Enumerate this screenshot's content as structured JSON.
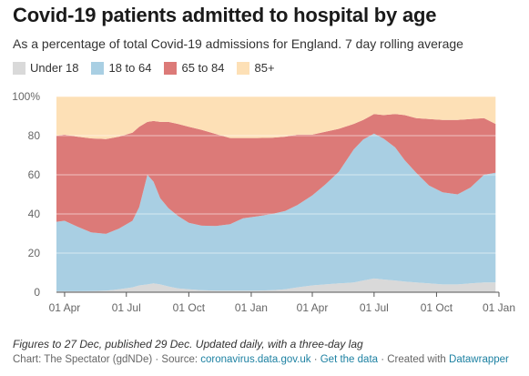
{
  "header": {
    "title": "Covid-19 patients admitted to hospital by age",
    "subtitle": "As a percentage of total Covid-19 admissions for England. 7 day rolling average"
  },
  "footer": {
    "notes": "Figures to 27 Dec, published 29 Dec. Updated daily, with a three-day lag",
    "source_prefix": "Chart: The Spectator (gdNDe) · Source: ",
    "source_link": "coronavirus.data.gov.uk",
    "separator_1": " · ",
    "get_data_link": "Get the data",
    "separator_2": " · Created with ",
    "datawrapper_link": "Datawrapper"
  },
  "colors": {
    "under_18": "#d9d9d9",
    "age_18_to_64": "#a9cfe3",
    "age_65_to_84": "#dc7a78",
    "age_85_plus": "#fde0b6",
    "link": "#1d81a2"
  },
  "chart_data": {
    "type": "area",
    "stacked": true,
    "ylim": [
      0,
      100
    ],
    "y_ticks": [
      0,
      20,
      40,
      60,
      80,
      100
    ],
    "y_tick_labels": [
      "0",
      "20",
      "40",
      "60",
      "80",
      "100%"
    ],
    "x_tick_labels": [
      "01 Apr",
      "01 Jul",
      "01 Oct",
      "01 Jan",
      "01 Apr",
      "01 Jul",
      "01 Oct",
      "01 Jan"
    ],
    "x_tick_dates": [
      "2020-04-01",
      "2020-07-01",
      "2020-10-01",
      "2021-01-01",
      "2021-04-01",
      "2021-07-01",
      "2021-10-01",
      "2022-01-01"
    ],
    "x_range": [
      "2020-03-20",
      "2022-01-01"
    ],
    "legend_position": "top-left",
    "grid": true,
    "x": [
      "2020-03-20",
      "2020-04-01",
      "2020-04-20",
      "2020-05-10",
      "2020-06-01",
      "2020-06-20",
      "2020-07-10",
      "2020-07-20",
      "2020-08-01",
      "2020-08-10",
      "2020-08-20",
      "2020-09-01",
      "2020-09-15",
      "2020-10-01",
      "2020-10-20",
      "2020-11-10",
      "2020-12-01",
      "2020-12-20",
      "2021-01-10",
      "2021-02-01",
      "2021-02-20",
      "2021-03-10",
      "2021-04-01",
      "2021-04-20",
      "2021-05-10",
      "2021-06-01",
      "2021-06-15",
      "2021-07-01",
      "2021-07-15",
      "2021-08-01",
      "2021-08-15",
      "2021-09-01",
      "2021-09-20",
      "2021-10-10",
      "2021-11-01",
      "2021-11-20",
      "2021-12-10",
      "2021-12-27"
    ],
    "series": [
      {
        "name": "Under 18",
        "values": [
          0.5,
          0.5,
          0.5,
          0.6,
          0.8,
          1.5,
          2.5,
          3.5,
          4,
          4.5,
          4,
          3,
          2,
          1.5,
          1,
          0.8,
          0.8,
          0.8,
          0.8,
          1,
          1.5,
          2.5,
          3.5,
          4,
          4.5,
          5,
          6,
          7,
          6.5,
          6,
          5.5,
          5,
          4.5,
          4,
          4,
          4.5,
          5,
          5
        ]
      },
      {
        "name": "18 to 64",
        "values": [
          35.5,
          36,
          33,
          30,
          29,
          31,
          34,
          40,
          56,
          52,
          44,
          40,
          37,
          34,
          33,
          33,
          34,
          37,
          38,
          39,
          40,
          42,
          46,
          51,
          57,
          68,
          72,
          74,
          72,
          68,
          62,
          56,
          50,
          47,
          46,
          49,
          55,
          56
        ]
      },
      {
        "name": "65 to 84",
        "values": [
          44,
          44,
          46,
          48,
          48.5,
          47,
          45,
          41,
          27,
          31,
          39,
          44,
          47,
          49,
          49,
          47,
          44,
          41,
          40,
          39,
          38,
          36,
          31,
          27,
          22,
          13,
          10,
          10,
          12,
          17,
          23,
          28,
          34,
          37,
          38,
          35,
          29,
          25
        ]
      },
      {
        "name": "85+",
        "values": [
          20,
          19.5,
          20.5,
          21.4,
          21.7,
          20.5,
          18.5,
          15.5,
          13,
          12.5,
          13,
          13,
          14,
          15.5,
          17,
          19.2,
          21.2,
          21.2,
          21.2,
          21,
          20.5,
          19.5,
          19.5,
          18,
          16.5,
          14,
          12,
          9,
          9.5,
          9,
          9.5,
          11,
          11.5,
          12,
          12,
          11.5,
          11,
          14
        ]
      }
    ]
  }
}
